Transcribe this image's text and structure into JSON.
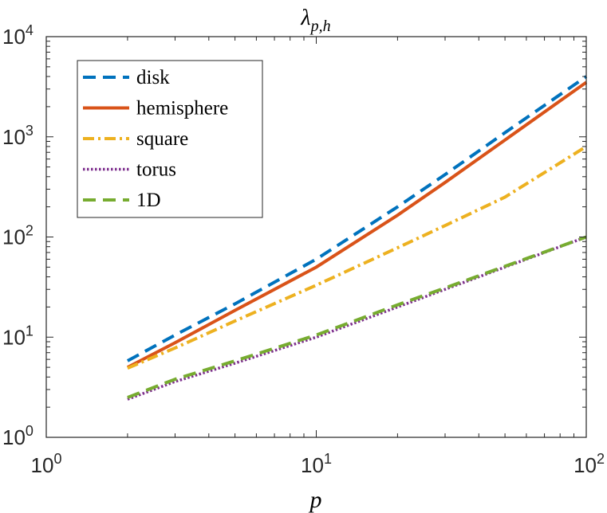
{
  "chart_data": {
    "type": "line",
    "title": "λ",
    "title_sub": "p,h",
    "xlabel": "p",
    "ylabel": "",
    "xscale": "log",
    "yscale": "log",
    "xlim": [
      1,
      100
    ],
    "ylim": [
      1,
      10000
    ],
    "grid": false,
    "legend_position": "top-left",
    "x_ticks": [
      {
        "base": "10",
        "exp": "0",
        "value": 1
      },
      {
        "base": "10",
        "exp": "1",
        "value": 10
      },
      {
        "base": "10",
        "exp": "2",
        "value": 100
      }
    ],
    "y_ticks": [
      {
        "base": "10",
        "exp": "0",
        "value": 1
      },
      {
        "base": "10",
        "exp": "1",
        "value": 10
      },
      {
        "base": "10",
        "exp": "2",
        "value": 100
      },
      {
        "base": "10",
        "exp": "3",
        "value": 1000
      },
      {
        "base": "10",
        "exp": "4",
        "value": 10000
      }
    ],
    "series": [
      {
        "name": "disk",
        "color": "#0072BD",
        "style": "dashed",
        "x": [
          2,
          3,
          5,
          10,
          20,
          30,
          50,
          100
        ],
        "y": [
          5.8,
          10.5,
          21.5,
          60,
          200,
          420,
          1100,
          4000
        ]
      },
      {
        "name": "hemisphere",
        "color": "#D95319",
        "style": "solid",
        "x": [
          2,
          3,
          5,
          10,
          20,
          30,
          50,
          100
        ],
        "y": [
          5,
          8.8,
          18.5,
          50,
          165,
          350,
          930,
          3500
        ]
      },
      {
        "name": "square",
        "color": "#EDB120",
        "style": "dashdot",
        "x": [
          2,
          3,
          5,
          10,
          20,
          30,
          50,
          100
        ],
        "y": [
          4.9,
          7.8,
          14.5,
          33,
          78,
          130,
          250,
          800
        ]
      },
      {
        "name": "torus",
        "color": "#7E2F8E",
        "style": "dotted",
        "x": [
          2,
          3,
          5,
          10,
          20,
          30,
          50,
          100
        ],
        "y": [
          2.4,
          3.6,
          5.5,
          10,
          20,
          30,
          50,
          100
        ]
      },
      {
        "name": "1D",
        "color": "#77AC30",
        "style": "dashed",
        "x": [
          2,
          3,
          5,
          10,
          20,
          30,
          50,
          100
        ],
        "y": [
          2.5,
          3.8,
          5.8,
          10.5,
          21,
          31,
          51,
          100
        ]
      }
    ]
  }
}
